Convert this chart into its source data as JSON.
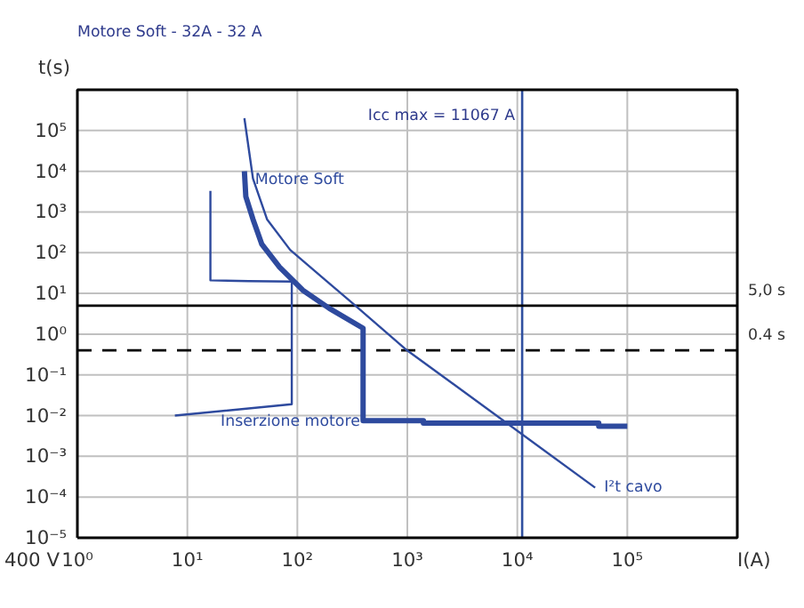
{
  "chart_data": {
    "type": "line",
    "title": "Motore Soft - 32A - 32 A",
    "xlabel": "I(A)",
    "ylabel": "t(s)",
    "log": "xy",
    "grid": true,
    "xlim": [
      1,
      1000000
    ],
    "ylim": [
      1e-05,
      1000000
    ],
    "xticks": [
      {
        "value": 1,
        "label": "10⁰"
      },
      {
        "value": 10,
        "label": "10¹"
      },
      {
        "value": 100,
        "label": "10²"
      },
      {
        "value": 1000,
        "label": "10³"
      },
      {
        "value": 10000,
        "label": "10⁴"
      },
      {
        "value": 100000,
        "label": "10⁵"
      },
      {
        "value": 1000000,
        "label": null
      }
    ],
    "yticks": [
      {
        "value": 1e-05,
        "label": "10⁻⁵"
      },
      {
        "value": 0.0001,
        "label": "10⁻⁴"
      },
      {
        "value": 0.001,
        "label": "10⁻³"
      },
      {
        "value": 0.01,
        "label": "10⁻²"
      },
      {
        "value": 0.1,
        "label": "10⁻¹"
      },
      {
        "value": 1,
        "label": "10⁰"
      },
      {
        "value": 10,
        "label": "10¹"
      },
      {
        "value": 100,
        "label": "10²"
      },
      {
        "value": 1000,
        "label": "10³"
      },
      {
        "value": 10000,
        "label": "10⁴"
      },
      {
        "value": 100000,
        "label": "10⁵"
      },
      {
        "value": 1000000,
        "label": null
      }
    ],
    "series": [
      {
        "name": "Motore Soft",
        "color": "#2e4a9e",
        "x": [
          33,
          34,
          39.5,
          47.6,
          69,
          112,
          195,
          396,
          396,
          1400,
          1400,
          55000,
          55000,
          100000
        ],
        "values": [
          10000,
          2400,
          660,
          160,
          44,
          12,
          4.3,
          1.4,
          0.0075,
          0.0075,
          0.0065,
          0.0065,
          0.0055,
          0.0055
        ]
      },
      {
        "name": "I²t cavo",
        "color": "#2e4a9e",
        "x": [
          33,
          39.5,
          53,
          86,
          181,
          316,
          960,
          51000
        ],
        "values": [
          200000,
          6600,
          660,
          117,
          21,
          5.8,
          0.43,
          0.00017
        ]
      },
      {
        "name": "Inserzione motore",
        "color": "#2e4a9e",
        "x": [
          7.7,
          89,
          89,
          36,
          16.2,
          16.2
        ],
        "values": [
          0.01,
          0.019,
          19.5,
          20,
          21,
          3300
        ]
      }
    ],
    "ref_lines": [
      {
        "axis": "x",
        "value": 11067,
        "label": "Icc max = 11067 A",
        "color": "#3050a0"
      },
      {
        "axis": "y",
        "value": 5,
        "label": "5,0 s",
        "color": "#000000",
        "line_style": "solid"
      },
      {
        "axis": "y",
        "value": 0.4,
        "label": "0.4 s",
        "color": "#000000",
        "line_style": "dashed"
      }
    ],
    "annotations": [
      "400 V"
    ]
  }
}
